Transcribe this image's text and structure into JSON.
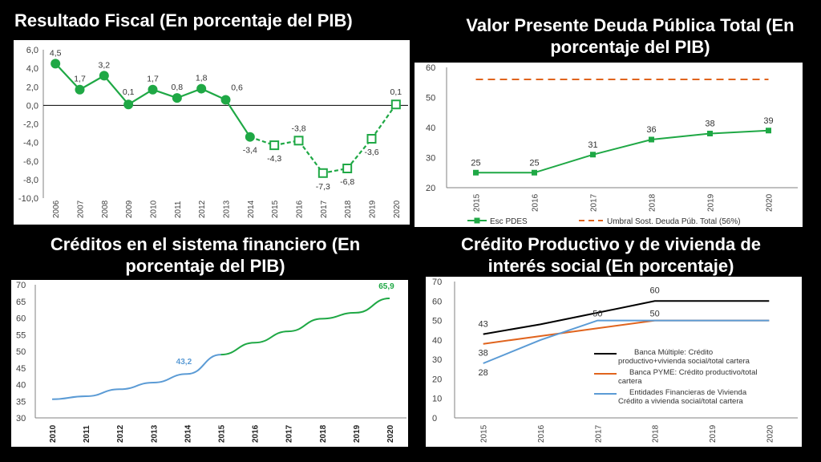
{
  "headings": {
    "fiscal": "Resultado Fiscal (En porcentaje del PIB)",
    "debt_line1": "Valor Presente Deuda Pública Total (En",
    "debt_line2": "porcentaje del PIB)",
    "credit_line1": "Créditos en el sistema financiero (En",
    "credit_line2": "porcentaje del PIB)",
    "productive_line1": "Crédito Productivo y de vivienda de",
    "productive_line2": "interés social (En porcentaje)"
  },
  "colors": {
    "green": "#1fa845",
    "orange": "#e0641e",
    "blue": "#5b9bd5",
    "black": "#000000",
    "axis_text": "#404040"
  },
  "chart_data": [
    {
      "id": "fiscal",
      "type": "line",
      "categories": [
        "2006",
        "2007",
        "2008",
        "2009",
        "2010",
        "2011",
        "2012",
        "2013",
        "2014",
        "2015",
        "2016",
        "2017",
        "2018",
        "2019",
        "2020"
      ],
      "values": [
        4.5,
        1.7,
        3.2,
        0.1,
        1.7,
        0.8,
        1.8,
        0.6,
        -3.4,
        -4.3,
        -3.8,
        -7.3,
        -6.8,
        -3.6,
        0.1
      ],
      "labels": [
        "4,5",
        "1,7",
        "3,2",
        "0,1",
        "1,7",
        "0,8",
        "1,8",
        "0,6",
        "-3,4",
        "-4,3",
        "-3,8",
        "-7,3",
        "-6,8",
        "-3,6",
        "0,1"
      ],
      "projected_from_index": 8,
      "yticks": [
        "6,0",
        "4,0",
        "2,0",
        "0,0",
        "-2,0",
        "-4,0",
        "-6,0",
        "-8,0",
        "-10,0"
      ],
      "ylim": [
        -10,
        6
      ]
    },
    {
      "id": "debt",
      "type": "line",
      "categories": [
        "2015",
        "2016",
        "2017",
        "2018",
        "2019",
        "2020"
      ],
      "series": [
        {
          "name": "Esc PDES",
          "values": [
            25,
            25,
            31,
            36,
            38,
            39
          ]
        },
        {
          "name": "Umbral Sost. Deuda Púb. Total (56%)",
          "values": [
            56,
            56,
            56,
            56,
            56,
            56
          ]
        }
      ],
      "labels": [
        "25",
        "25",
        "31",
        "36",
        "38",
        "39"
      ],
      "yticks": [
        "60",
        "50",
        "40",
        "30",
        "20"
      ],
      "ylim": [
        20,
        60
      ],
      "legend": "bottom"
    },
    {
      "id": "credit",
      "type": "line",
      "categories": [
        "2010",
        "2011",
        "2012",
        "2013",
        "2014",
        "2015",
        "2016",
        "2017",
        "2018",
        "2019",
        "2020"
      ],
      "values": [
        35.6,
        36.5,
        38.6,
        40.6,
        43.2,
        49.0,
        52.6,
        56.0,
        59.8,
        61.6,
        65.9
      ],
      "annotations": [
        {
          "index": 4,
          "text": "43,2"
        },
        {
          "index": 10,
          "text": "65,9"
        }
      ],
      "observed_until_index": 5,
      "yticks": [
        "70",
        "65",
        "60",
        "55",
        "50",
        "45",
        "40",
        "35",
        "30"
      ],
      "ylim": [
        30,
        70
      ]
    },
    {
      "id": "productive",
      "type": "line",
      "categories": [
        "2015",
        "2016",
        "2017",
        "2018",
        "2019",
        "2020"
      ],
      "series": [
        {
          "name": "Banca Múltiple: Crédito productivo+vivienda social/total cartera",
          "legend_line1": "Banca Múltiple: Crédito",
          "legend_line2": "productivo+vivienda social/total cartera",
          "values": [
            43,
            48,
            54,
            60,
            60,
            60
          ]
        },
        {
          "name": "Banca PYME: Crédito productivo/total cartera",
          "legend_line1": "Banca PYME: Crédito productivo/total",
          "legend_line2": "cartera",
          "values": [
            38,
            42,
            46,
            50,
            50,
            50
          ]
        },
        {
          "name": "Entidades Financieras de Vivienda Crédito a vivienda social/total cartera",
          "legend_line1": "Entidades Financieras de Vivienda",
          "legend_line2": "Crédito a vivienda social/total cartera",
          "values": [
            28,
            40,
            50,
            50,
            50,
            50
          ]
        }
      ],
      "annotations": [
        {
          "series": 0,
          "index": 0,
          "text": "43"
        },
        {
          "series": 0,
          "index": 3,
          "text": "60"
        },
        {
          "series": 1,
          "index": 0,
          "text": "38"
        },
        {
          "series": 2,
          "index": 0,
          "text": "28"
        },
        {
          "series": 2,
          "index": 2,
          "text": "50"
        },
        {
          "series": 1,
          "index": 3,
          "text": "50"
        }
      ],
      "yticks": [
        "70",
        "60",
        "50",
        "40",
        "30",
        "20",
        "10",
        "0"
      ],
      "ylim": [
        0,
        70
      ],
      "legend": "right"
    }
  ]
}
